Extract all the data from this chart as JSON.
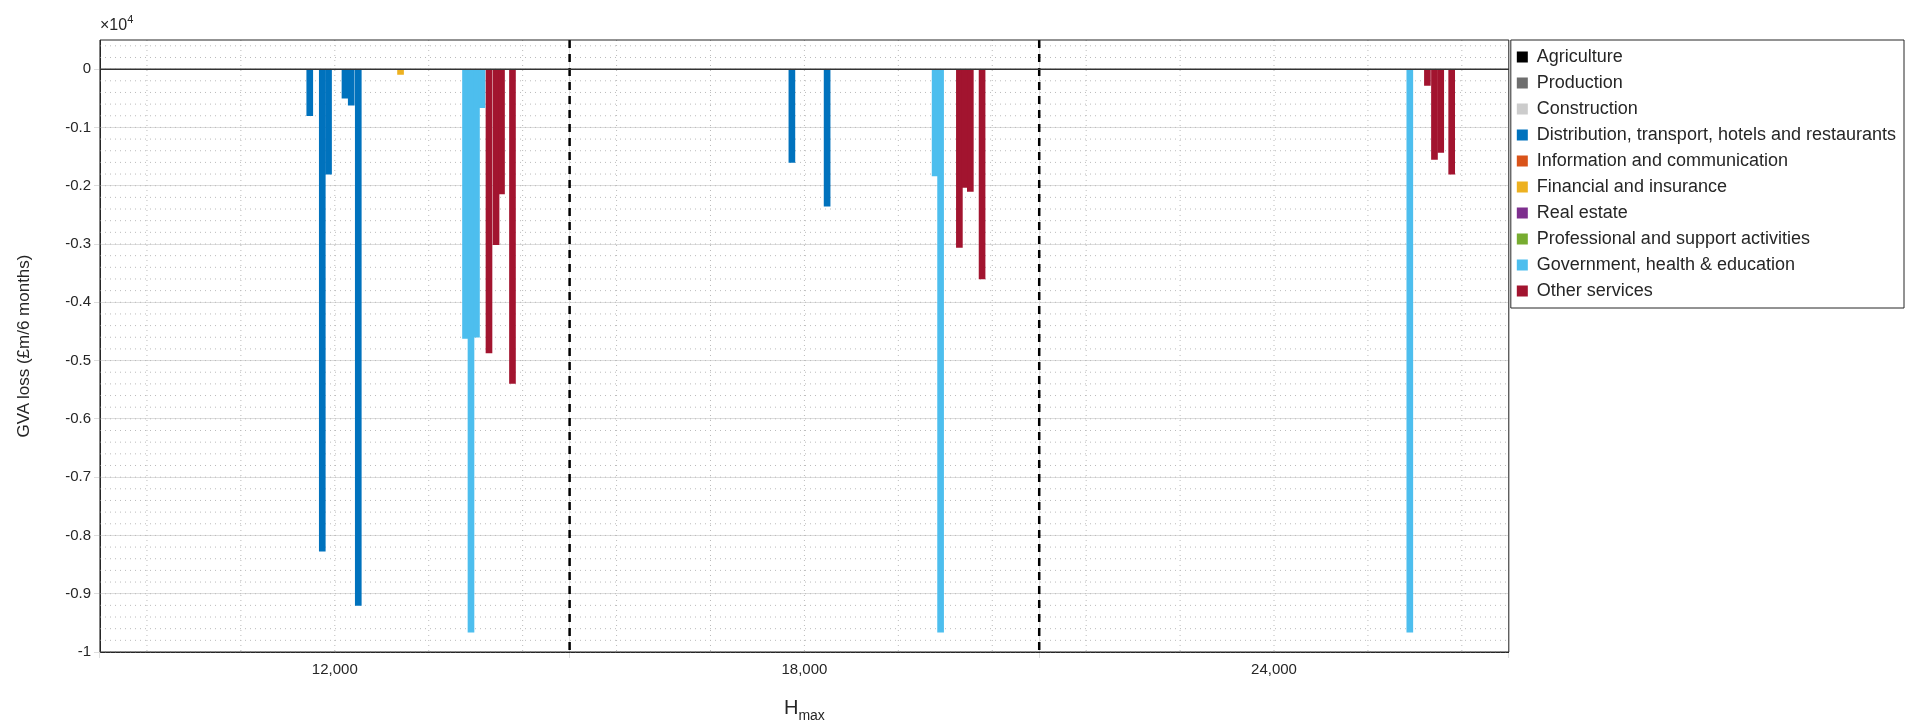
{
  "chart_data": {
    "type": "bar",
    "xlabel": "H$_{max}$",
    "ylabel": "GVA loss (£m/6 months)",
    "annotations": [
      "×10$^{4}$"
    ],
    "xlim": [
      9000,
      27000
    ],
    "xticks": [
      {
        "value": 12000,
        "label": "12,000"
      },
      {
        "value": 18000,
        "label": "18,000"
      },
      {
        "value": 24000,
        "label": "24,000"
      }
    ],
    "ylim": [
      -1,
      0.05
    ],
    "yticks": [
      -1,
      -0.9,
      -0.8,
      -0.7,
      -0.6,
      -0.5,
      -0.4,
      -0.3,
      -0.2,
      -0.1,
      0
    ],
    "grid": true,
    "legend": "right",
    "ref_lines": [
      {
        "axis": "x",
        "value": 15000,
        "color": "#000000",
        "line_style": "dashed"
      },
      {
        "axis": "x",
        "value": 21000,
        "color": "#000000",
        "line_style": "dashed"
      },
      {
        "axis": "y",
        "value": 0,
        "color": "#333333",
        "line_style": "solid"
      }
    ],
    "series": [
      {
        "name": "Agriculture",
        "color": "#000000"
      },
      {
        "name": "Production",
        "color": "#6e6e6e"
      },
      {
        "name": "Construction",
        "color": "#cccccc"
      },
      {
        "name": "Distribution, transport, hotels and restaurants",
        "color": "#0072bd",
        "x": [
          11680,
          11840,
          11920,
          12130,
          12210,
          12300,
          17840,
          18290
        ],
        "values": [
          -0.08,
          -0.827,
          -0.18,
          -0.05,
          -0.062,
          -0.92,
          -0.16,
          -0.235
        ]
      },
      {
        "name": "Information and communication",
        "color": "#d95319"
      },
      {
        "name": "Financial and insurance",
        "color": "#edb120",
        "x": [
          12840
        ],
        "values": [
          -0.009
        ]
      },
      {
        "name": "Real estate",
        "color": "#7e2f8e"
      },
      {
        "name": "Professional and support activities",
        "color": "#77ac30"
      },
      {
        "name": "Government, health & education",
        "color": "#4dbeee",
        "x": [
          13670,
          13740,
          13810,
          13880,
          19670,
          19740,
          25735
        ],
        "values": [
          -0.462,
          -0.966,
          -0.46,
          -0.066,
          -0.183,
          -0.966,
          -0.966
        ]
      },
      {
        "name": "Other services",
        "color": "#a2142f",
        "x": [
          13970,
          14060,
          14130,
          14270,
          19980,
          20050,
          20120,
          20270,
          25960,
          26050,
          26130,
          26270
        ],
        "values": [
          -0.487,
          -0.301,
          -0.214,
          -0.539,
          -0.306,
          -0.203,
          -0.21,
          -0.36,
          -0.028,
          -0.155,
          -0.143,
          -0.18
        ]
      }
    ]
  }
}
